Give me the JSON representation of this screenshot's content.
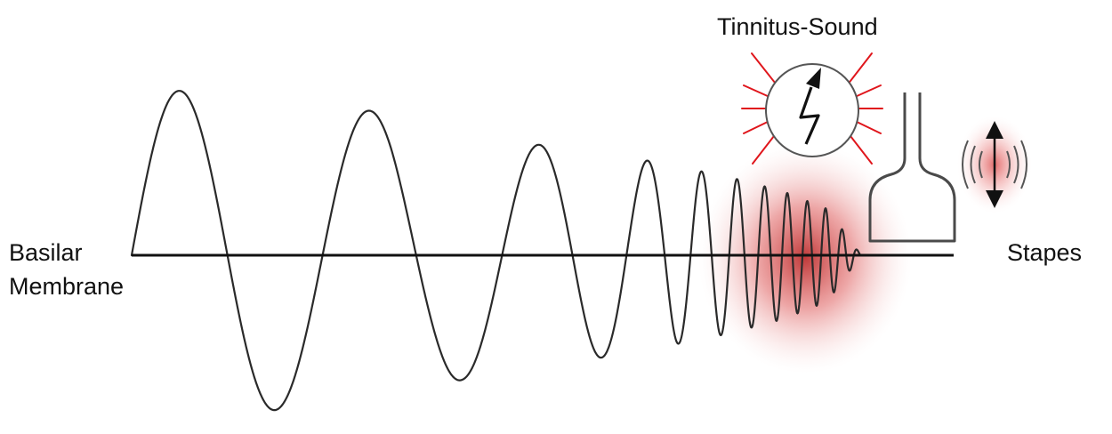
{
  "labels": {
    "basilar_line1": "Basilar",
    "basilar_line2": "Membrane",
    "stapes": "Stapes",
    "tinnitus": "Tinnitus-Sound"
  },
  "colors": {
    "wave": "#2a2a2a",
    "axis": "#111111",
    "glow": "#c81e1e",
    "rays": "#e0161c",
    "outline": "#4a4a4a",
    "arrow": "#111111"
  },
  "icons": {
    "tinnitus": "lightning-arrow-icon",
    "vibration": "double-arrow-icon"
  }
}
